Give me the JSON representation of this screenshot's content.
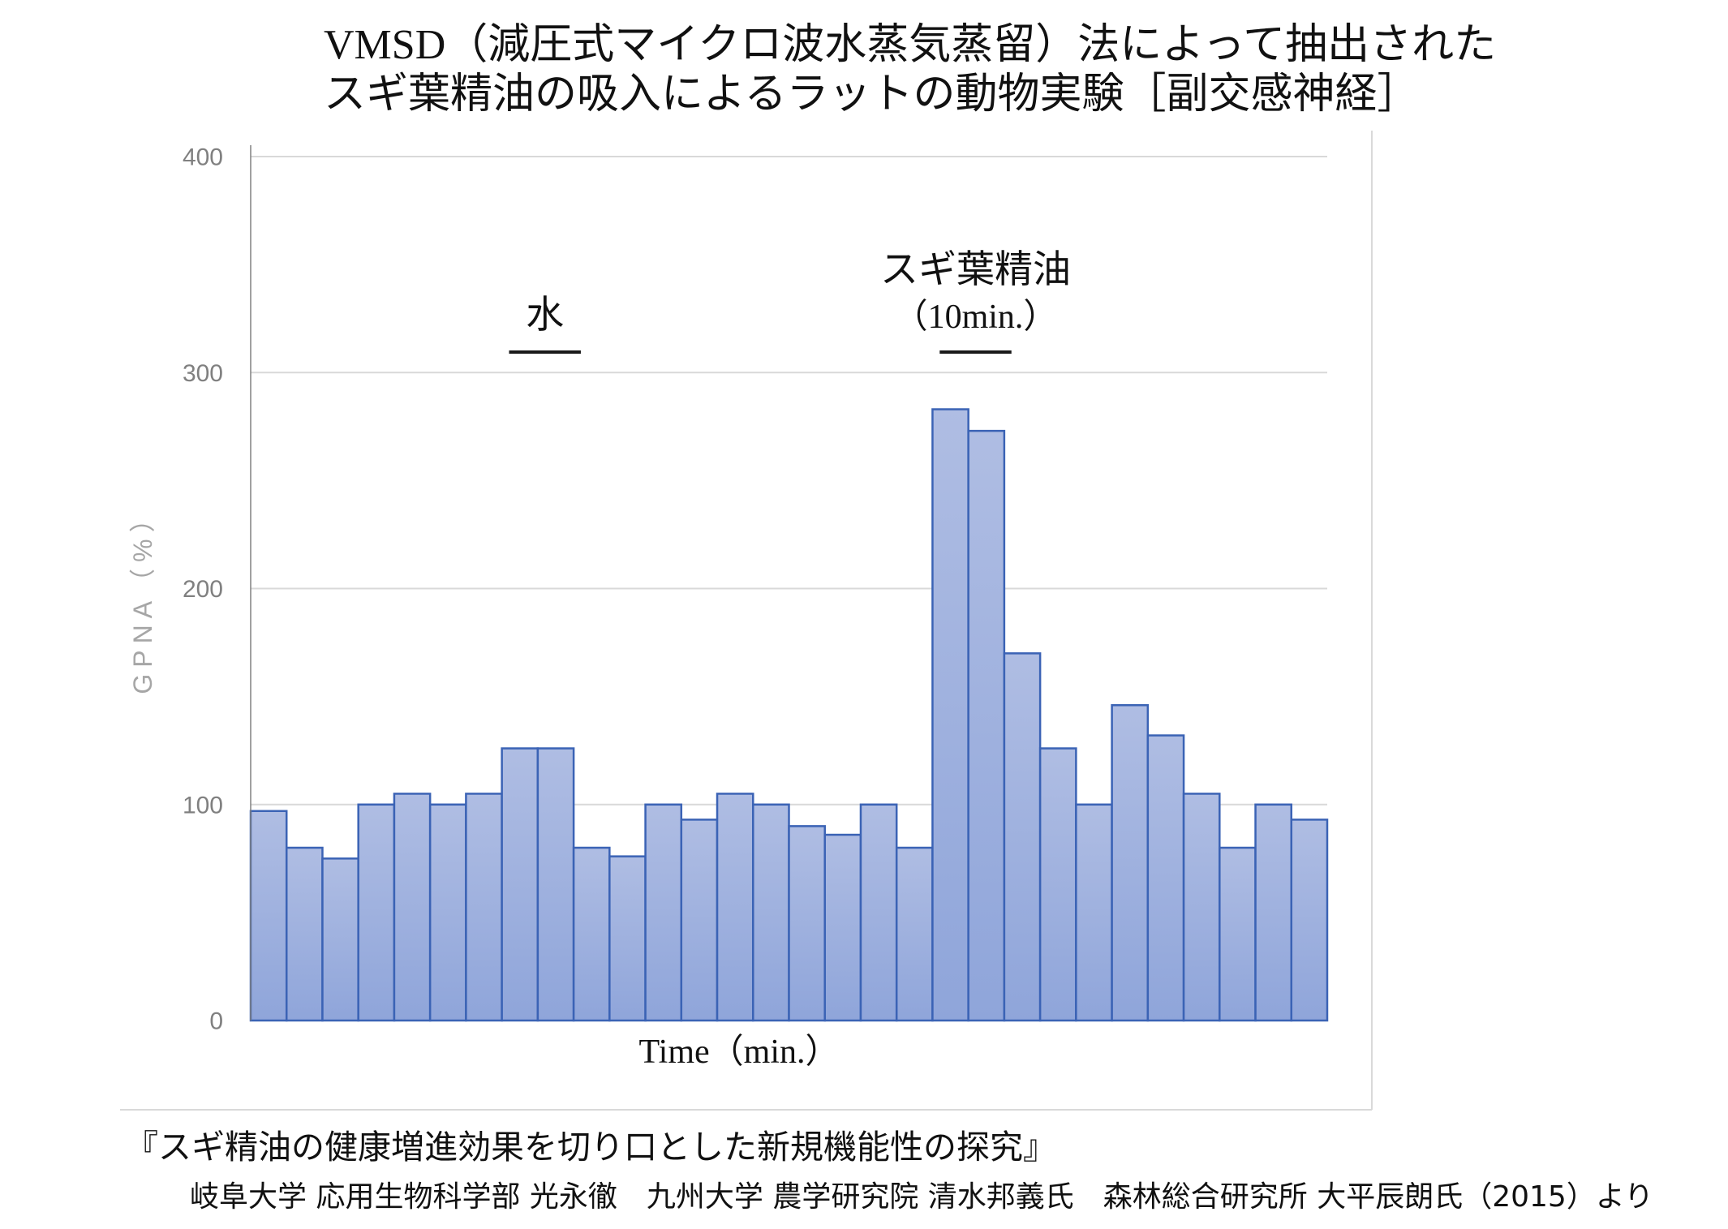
{
  "chart_data": {
    "type": "bar",
    "title": {
      "line1_latin": "VMSD",
      "line1_jp": "（減圧式マイクロ波水蒸気蒸留）法によって抽出された",
      "line2": "スギ葉精油の吸入によるラットの動物実験［副交感神経］"
    },
    "xlabel": "Time（min.）",
    "ylabel": "GPNA（%）",
    "ylim": [
      0,
      400
    ],
    "yticks": [
      0,
      100,
      200,
      300,
      400
    ],
    "grid": "horizontal",
    "values": [
      97,
      80,
      75,
      100,
      105,
      100,
      105,
      126,
      126,
      80,
      76,
      100,
      93,
      105,
      100,
      90,
      86,
      100,
      80,
      283,
      273,
      170,
      126,
      100,
      146,
      132,
      105,
      80,
      100,
      93
    ],
    "annotations": [
      {
        "lines": [
          "水"
        ],
        "bars": [
          8,
          9
        ]
      },
      {
        "lines": [
          "スギ葉精油",
          "（10min.）"
        ],
        "bars": [
          20,
          21
        ]
      }
    ],
    "colors": {
      "bar_fill_top": "#afbde3",
      "bar_fill_bottom": "#8fa5da",
      "bar_stroke": "#3b63b5"
    }
  },
  "footer": {
    "source_title": "『スギ精油の健康増進効果を切り口とした新規機能性の探究』",
    "credits": "岐阜大学 応用生物科学部 光永徹　九州大学 農学研究院 清水邦義氏　森林総合研究所 大平辰朗氏（2015）より"
  }
}
